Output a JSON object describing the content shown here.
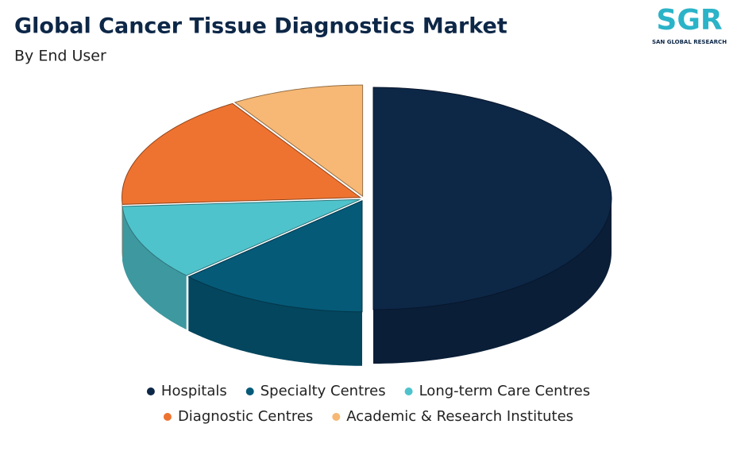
{
  "chart_data": {
    "type": "pie",
    "title": "Global Cancer Tissue Diagnostics Market",
    "subtitle": "By End User",
    "categories": [
      "Hospitals",
      "Specialty Centres",
      "Long-term Care Centres",
      "Diagnostic Centres",
      "Academic & Research Institutes"
    ],
    "values": [
      50,
      13,
      11,
      17,
      9
    ],
    "colors": [
      "#0d2747",
      "#055a78",
      "#4fc3cc",
      "#ef7330",
      "#f6b874"
    ],
    "legend": "bottom"
  },
  "logo": {
    "text": "SGR",
    "subtitle": "SAN GLOBAL RESEARCH"
  }
}
